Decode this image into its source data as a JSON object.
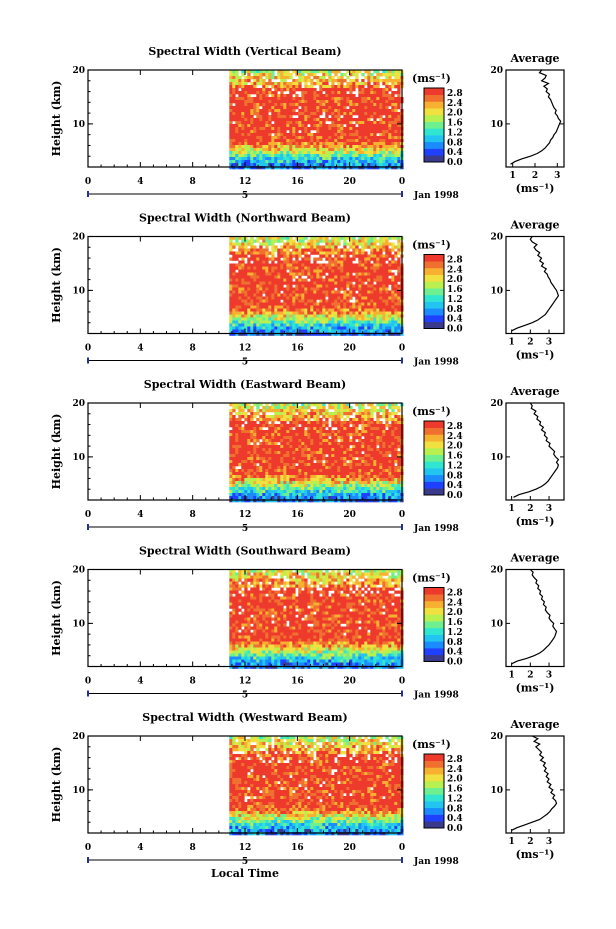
{
  "figure": {
    "xlabel": "Local Time",
    "date_label": "Jan 1998",
    "day_marker": "5",
    "profile_title": "Average",
    "profile_xlabel": "(ms⁻¹)",
    "colorbar_unit": "(ms⁻¹)",
    "ylabel": "Height (km)",
    "colormap": [
      "#3a3a8c",
      "#2040ff",
      "#1a8cff",
      "#22c4f0",
      "#30e6d0",
      "#6ef090",
      "#b8f050",
      "#f0e040",
      "#f8b030",
      "#f07030",
      "#ee3a2c"
    ],
    "colors": {
      "data_high": "#ee3a2c",
      "axis": "#000000",
      "day_bar": "#2030a0"
    }
  },
  "chart_data": [
    {
      "type": "heatmap",
      "title": "Spectral Width (Vertical Beam)",
      "x_ticks": [
        "0",
        "4",
        "8",
        "12",
        "16",
        "20",
        "0"
      ],
      "x_range_hours": [
        0,
        24
      ],
      "data_start_hour": 10.8,
      "y_ticks": [
        "20",
        "10"
      ],
      "ylim_km": [
        2,
        20
      ],
      "colorbar": {
        "ticks": [
          "2.8",
          "2.4",
          "2.0",
          "1.6",
          "1.2",
          "0.8",
          "0.4",
          "0.0"
        ],
        "range": [
          0,
          3.0
        ]
      },
      "profile": {
        "type": "line",
        "xlim": [
          0.7,
          3.3
        ],
        "x_ticks": [
          "1",
          "2",
          "3"
        ],
        "y_ticks": [
          "20",
          "10"
        ],
        "heights_km": [
          2.5,
          3,
          3.5,
          4,
          4.5,
          5,
          5.5,
          6,
          6.5,
          7,
          7.5,
          8,
          8.5,
          9,
          9.5,
          10,
          10.5,
          11,
          11.5,
          12,
          12.5,
          13,
          13.5,
          14,
          14.5,
          15,
          15.5,
          16,
          16.5,
          17,
          17.5,
          18,
          18.5,
          19,
          19.5,
          20
        ],
        "values": [
          0.9,
          1.1,
          1.4,
          1.8,
          2.1,
          2.3,
          2.45,
          2.55,
          2.65,
          2.7,
          2.8,
          2.85,
          2.95,
          3.0,
          3.05,
          3.1,
          3.15,
          3.05,
          3.0,
          2.9,
          2.95,
          2.85,
          2.8,
          2.75,
          2.7,
          2.6,
          2.65,
          2.5,
          2.55,
          2.4,
          2.6,
          2.3,
          2.45,
          2.5,
          2.2,
          2.3
        ]
      }
    },
    {
      "type": "heatmap",
      "title": "Spectral Width (Northward Beam)",
      "x_ticks": [
        "0",
        "4",
        "8",
        "12",
        "16",
        "20",
        "0"
      ],
      "x_range_hours": [
        0,
        24
      ],
      "data_start_hour": 10.8,
      "y_ticks": [
        "20",
        "10"
      ],
      "ylim_km": [
        2,
        20
      ],
      "colorbar": {
        "ticks": [
          "2.8",
          "2.4",
          "2.0",
          "1.6",
          "1.2",
          "0.8",
          "0.4",
          "0.0"
        ],
        "range": [
          0,
          3.0
        ]
      },
      "profile": {
        "type": "line",
        "xlim": [
          0.7,
          3.8
        ],
        "x_ticks": [
          "1",
          "2",
          "3"
        ],
        "y_ticks": [
          "20",
          "10"
        ],
        "heights_km": [
          2.5,
          3,
          3.5,
          4,
          4.5,
          5,
          5.5,
          6,
          6.5,
          7,
          7.5,
          8,
          8.5,
          9,
          9.5,
          10,
          10.5,
          11,
          11.5,
          12,
          12.5,
          13,
          13.5,
          14,
          14.5,
          15,
          15.5,
          16,
          16.5,
          17,
          17.5,
          18,
          18.5,
          19,
          19.5,
          20
        ],
        "values": [
          1.0,
          1.3,
          1.7,
          2.1,
          2.4,
          2.6,
          2.8,
          2.9,
          3.0,
          3.1,
          3.2,
          3.3,
          3.4,
          3.5,
          3.45,
          3.4,
          3.3,
          3.2,
          3.1,
          3.05,
          2.95,
          2.9,
          2.75,
          2.85,
          2.6,
          2.7,
          2.5,
          2.6,
          2.4,
          2.5,
          2.3,
          2.2,
          2.35,
          2.1,
          2.0,
          2.1
        ]
      }
    },
    {
      "type": "heatmap",
      "title": "Spectral Width (Eastward Beam)",
      "x_ticks": [
        "0",
        "4",
        "8",
        "12",
        "16",
        "20",
        "0"
      ],
      "x_range_hours": [
        0,
        24
      ],
      "data_start_hour": 10.8,
      "y_ticks": [
        "20",
        "10"
      ],
      "ylim_km": [
        2,
        20
      ],
      "colorbar": {
        "ticks": [
          "2.8",
          "2.4",
          "2.0",
          "1.6",
          "1.2",
          "0.8",
          "0.4",
          "0.0"
        ],
        "range": [
          0,
          3.0
        ]
      },
      "profile": {
        "type": "line",
        "xlim": [
          0.7,
          3.8
        ],
        "x_ticks": [
          "1",
          "2",
          "3"
        ],
        "y_ticks": [
          "20",
          "10"
        ],
        "heights_km": [
          2.5,
          3,
          3.5,
          4,
          4.5,
          5,
          5.5,
          6,
          6.5,
          7,
          7.5,
          8,
          8.5,
          9,
          9.5,
          10,
          10.5,
          11,
          11.5,
          12,
          12.5,
          13,
          13.5,
          14,
          14.5,
          15,
          15.5,
          16,
          16.5,
          17,
          17.5,
          18,
          18.5,
          19,
          19.5,
          20
        ],
        "values": [
          1.1,
          1.4,
          1.9,
          2.3,
          2.6,
          2.8,
          2.95,
          3.05,
          3.15,
          3.25,
          3.35,
          3.45,
          3.5,
          3.4,
          3.5,
          3.35,
          3.25,
          3.3,
          3.15,
          3.0,
          3.05,
          2.85,
          2.9,
          2.75,
          2.8,
          2.6,
          2.7,
          2.5,
          2.55,
          2.35,
          2.4,
          2.2,
          2.3,
          2.05,
          2.1,
          2.0
        ]
      }
    },
    {
      "type": "heatmap",
      "title": "Spectral Width (Southward Beam)",
      "x_ticks": [
        "0",
        "4",
        "8",
        "12",
        "16",
        "20",
        "0"
      ],
      "x_range_hours": [
        0,
        24
      ],
      "data_start_hour": 10.8,
      "y_ticks": [
        "20",
        "10"
      ],
      "ylim_km": [
        2,
        20
      ],
      "colorbar": {
        "ticks": [
          "2.8",
          "2.4",
          "2.0",
          "1.6",
          "1.2",
          "0.8",
          "0.4",
          "0.0"
        ],
        "range": [
          0,
          3.0
        ]
      },
      "profile": {
        "type": "line",
        "xlim": [
          0.7,
          3.8
        ],
        "x_ticks": [
          "1",
          "2",
          "3"
        ],
        "y_ticks": [
          "20",
          "10"
        ],
        "heights_km": [
          2.5,
          3,
          3.5,
          4,
          4.5,
          5,
          5.5,
          6,
          6.5,
          7,
          7.5,
          8,
          8.5,
          9,
          9.5,
          10,
          10.5,
          11,
          11.5,
          12,
          12.5,
          13,
          13.5,
          14,
          14.5,
          15,
          15.5,
          16,
          16.5,
          17,
          17.5,
          18,
          18.5,
          19,
          19.5,
          20
        ],
        "values": [
          1.0,
          1.3,
          1.8,
          2.2,
          2.5,
          2.7,
          2.85,
          3.0,
          3.1,
          3.2,
          3.3,
          3.35,
          3.4,
          3.3,
          3.2,
          3.25,
          3.1,
          3.0,
          3.05,
          2.9,
          2.8,
          2.85,
          2.7,
          2.75,
          2.6,
          2.65,
          2.5,
          2.55,
          2.4,
          2.45,
          2.3,
          2.35,
          2.2,
          2.1,
          2.15,
          2.0
        ]
      }
    },
    {
      "type": "heatmap",
      "title": "Spectral Width (Westward Beam)",
      "x_ticks": [
        "0",
        "4",
        "8",
        "12",
        "16",
        "20",
        "0"
      ],
      "x_range_hours": [
        0,
        24
      ],
      "data_start_hour": 10.8,
      "y_ticks": [
        "20",
        "10"
      ],
      "ylim_km": [
        2,
        20
      ],
      "colorbar": {
        "ticks": [
          "2.8",
          "2.4",
          "2.0",
          "1.6",
          "1.2",
          "0.8",
          "0.4",
          "0.0"
        ],
        "range": [
          0,
          3.0
        ]
      },
      "profile": {
        "type": "line",
        "xlim": [
          0.7,
          3.8
        ],
        "x_ticks": [
          "1",
          "2",
          "3"
        ],
        "y_ticks": [
          "20",
          "10"
        ],
        "heights_km": [
          2.5,
          3,
          3.5,
          4,
          4.5,
          5,
          5.5,
          6,
          6.5,
          7,
          7.5,
          8,
          8.5,
          9,
          9.5,
          10,
          10.5,
          11,
          11.5,
          12,
          12.5,
          13,
          13.5,
          14,
          14.5,
          15,
          15.5,
          16,
          16.5,
          17,
          17.5,
          18,
          18.5,
          19,
          19.5,
          20
        ],
        "values": [
          1.0,
          1.3,
          1.7,
          2.1,
          2.5,
          2.7,
          2.9,
          3.05,
          3.15,
          3.3,
          3.4,
          3.35,
          3.2,
          3.3,
          3.1,
          3.2,
          3.0,
          3.1,
          2.9,
          3.0,
          2.85,
          2.95,
          2.75,
          2.85,
          2.7,
          2.8,
          2.55,
          2.7,
          2.5,
          2.6,
          2.45,
          2.3,
          2.5,
          2.2,
          2.4,
          2.1
        ]
      }
    }
  ]
}
